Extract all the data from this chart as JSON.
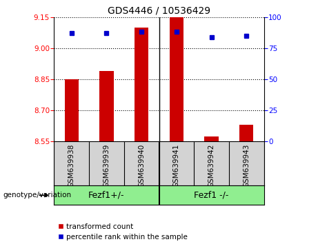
{
  "title": "GDS4446 / 10536429",
  "samples": [
    "GSM639938",
    "GSM639939",
    "GSM639940",
    "GSM639941",
    "GSM639942",
    "GSM639943"
  ],
  "red_values": [
    8.85,
    8.89,
    9.1,
    9.15,
    8.575,
    8.63
  ],
  "blue_values": [
    87,
    87,
    88,
    88,
    84,
    85
  ],
  "ylim_left": [
    8.55,
    9.15
  ],
  "ylim_right": [
    0,
    100
  ],
  "yticks_left": [
    8.55,
    8.7,
    8.85,
    9.0,
    9.15
  ],
  "yticks_right": [
    0,
    25,
    50,
    75,
    100
  ],
  "bar_color": "#cc0000",
  "dot_color": "#0000cc",
  "group1_label": "Fezf1+/-",
  "group2_label": "Fezf1 -/-",
  "group_color": "#90ee90",
  "separator_idx": 3,
  "legend_red": "transformed count",
  "legend_blue": "percentile rank within the sample",
  "genotype_label": "genotype/variation",
  "tick_bg_color": "#d3d3d3",
  "plot_bg": "#ffffff",
  "bar_width": 0.4,
  "title_fontsize": 10,
  "tick_fontsize": 7.5,
  "label_fontsize": 7.5,
  "legend_fontsize": 7.5
}
